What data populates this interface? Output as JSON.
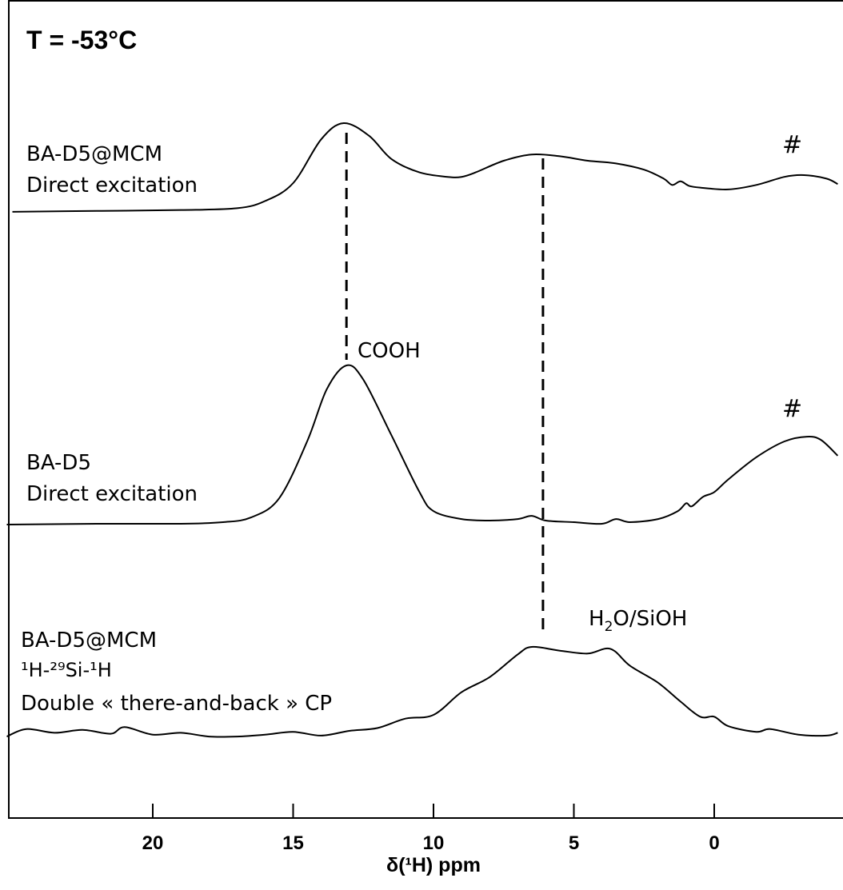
{
  "chart_data": {
    "type": "line",
    "title": "T = -53°C",
    "xlabel": "δ(¹H) ppm",
    "xlim": [
      25,
      -4.4
    ],
    "x_reversed": true,
    "xticks": [
      20,
      15,
      10,
      5,
      0
    ],
    "tick_labels": [
      "20",
      "15",
      "10",
      "5",
      "0"
    ],
    "grid": false,
    "y_axis": "none (stacked spectra, arbitrary intensity)",
    "series": [
      {
        "label_lines": [
          "BA-D5@MCM",
          "Direct excitation"
        ],
        "marker": "#",
        "points": [
          [
            25,
            0.01
          ],
          [
            22,
            0.02
          ],
          [
            19,
            0.03
          ],
          [
            17,
            0.05
          ],
          [
            16,
            0.13
          ],
          [
            15,
            0.33
          ],
          [
            14,
            0.82
          ],
          [
            13.2,
            1.0
          ],
          [
            12.3,
            0.86
          ],
          [
            11.5,
            0.6
          ],
          [
            10.5,
            0.45
          ],
          [
            9.5,
            0.4
          ],
          [
            9,
            0.4
          ],
          [
            8.5,
            0.45
          ],
          [
            7.5,
            0.58
          ],
          [
            6.5,
            0.65
          ],
          [
            5.5,
            0.63
          ],
          [
            4.5,
            0.58
          ],
          [
            3.5,
            0.55
          ],
          [
            2.5,
            0.48
          ],
          [
            1.8,
            0.38
          ],
          [
            1.5,
            0.31
          ],
          [
            1.2,
            0.35
          ],
          [
            0.9,
            0.3
          ],
          [
            0.5,
            0.28
          ],
          [
            -0.5,
            0.26
          ],
          [
            -1.5,
            0.31
          ],
          [
            -2.5,
            0.4
          ],
          [
            -3.2,
            0.42
          ],
          [
            -4.0,
            0.38
          ],
          [
            -4.4,
            0.32
          ]
        ]
      },
      {
        "label_lines": [
          "BA-D5",
          "Direct excitation"
        ],
        "marker": "#",
        "points": [
          [
            25.2,
            -0.005
          ],
          [
            22,
            0
          ],
          [
            19,
            0
          ],
          [
            17.5,
            0.01
          ],
          [
            16.5,
            0.04
          ],
          [
            15.5,
            0.16
          ],
          [
            14.5,
            0.52
          ],
          [
            13.8,
            0.85
          ],
          [
            13.1,
            1.0
          ],
          [
            12.5,
            0.91
          ],
          [
            11.5,
            0.56
          ],
          [
            10.5,
            0.2
          ],
          [
            10,
            0.08
          ],
          [
            9,
            0.03
          ],
          [
            8,
            0.02
          ],
          [
            7,
            0.03
          ],
          [
            6.5,
            0.05
          ],
          [
            6,
            0.02
          ],
          [
            5,
            0.01
          ],
          [
            4,
            0.0
          ],
          [
            3.5,
            0.03
          ],
          [
            3,
            0.01
          ],
          [
            2,
            0.03
          ],
          [
            1.3,
            0.08
          ],
          [
            1.0,
            0.13
          ],
          [
            0.8,
            0.11
          ],
          [
            0.4,
            0.17
          ],
          [
            0,
            0.2
          ],
          [
            -0.5,
            0.28
          ],
          [
            -1.5,
            0.42
          ],
          [
            -2.5,
            0.52
          ],
          [
            -3.3,
            0.55
          ],
          [
            -3.8,
            0.53
          ],
          [
            -4.4,
            0.43
          ]
        ]
      },
      {
        "label_lines": [
          "BA-D5@MCM",
          "¹H-²⁹Si-¹H",
          "Double « there-and-back » CP"
        ],
        "points": [
          [
            25.2,
            0.05
          ],
          [
            24.5,
            0.13
          ],
          [
            23.5,
            0.09
          ],
          [
            22.5,
            0.12
          ],
          [
            21.5,
            0.08
          ],
          [
            21,
            0.15
          ],
          [
            20,
            0.07
          ],
          [
            19,
            0.09
          ],
          [
            18,
            0.05
          ],
          [
            17,
            0.05
          ],
          [
            16,
            0.07
          ],
          [
            15,
            0.1
          ],
          [
            14,
            0.06
          ],
          [
            13,
            0.11
          ],
          [
            12,
            0.14
          ],
          [
            11,
            0.24
          ],
          [
            10,
            0.28
          ],
          [
            9,
            0.52
          ],
          [
            8,
            0.68
          ],
          [
            7,
            0.92
          ],
          [
            6.5,
            1.0
          ],
          [
            5.5,
            0.96
          ],
          [
            4.5,
            0.93
          ],
          [
            3.7,
            0.98
          ],
          [
            3,
            0.8
          ],
          [
            2,
            0.62
          ],
          [
            1.2,
            0.42
          ],
          [
            0.5,
            0.26
          ],
          [
            0,
            0.26
          ],
          [
            -0.5,
            0.16
          ],
          [
            -1.5,
            0.1
          ],
          [
            -2,
            0.13
          ],
          [
            -3,
            0.07
          ],
          [
            -4,
            0.06
          ],
          [
            -4.4,
            0.09
          ]
        ]
      }
    ],
    "annotations": [
      {
        "text": "COOH",
        "x": 13.1
      },
      {
        "text_parts": [
          "H",
          "2",
          "O/SiOH"
        ],
        "x": 6.1
      }
    ],
    "guide_lines_ppm": [
      13.1,
      6.1
    ]
  }
}
